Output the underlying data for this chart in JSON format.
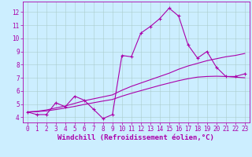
{
  "xlabel": "Windchill (Refroidissement éolien,°C)",
  "background_color": "#cceeff",
  "line_color": "#aa00aa",
  "grid_color": "#aacccc",
  "x_data": [
    0,
    1,
    2,
    3,
    4,
    5,
    6,
    7,
    8,
    9,
    10,
    11,
    12,
    13,
    14,
    15,
    16,
    17,
    18,
    19,
    20,
    21,
    22,
    23
  ],
  "series": [
    {
      "y": [
        4.4,
        4.2,
        4.2,
        5.1,
        4.8,
        5.6,
        5.3,
        4.6,
        3.9,
        4.2,
        8.7,
        8.6,
        10.4,
        10.9,
        11.5,
        12.3,
        11.7,
        9.5,
        8.5,
        9.0,
        7.8,
        7.1,
        7.1,
        7.3
      ],
      "marker": "+",
      "markersize": 3,
      "linewidth": 0.8
    },
    {
      "y": [
        4.4,
        4.45,
        4.55,
        4.7,
        4.85,
        5.05,
        5.25,
        5.4,
        5.55,
        5.7,
        6.05,
        6.35,
        6.6,
        6.85,
        7.1,
        7.35,
        7.65,
        7.9,
        8.1,
        8.3,
        8.45,
        8.6,
        8.7,
        8.85
      ],
      "marker": null,
      "markersize": 0,
      "linewidth": 0.8
    },
    {
      "y": [
        4.4,
        4.42,
        4.48,
        4.58,
        4.7,
        4.82,
        4.97,
        5.1,
        5.23,
        5.35,
        5.6,
        5.82,
        6.02,
        6.22,
        6.42,
        6.6,
        6.78,
        6.93,
        7.05,
        7.1,
        7.12,
        7.1,
        7.05,
        7.0
      ],
      "marker": null,
      "markersize": 0,
      "linewidth": 0.8
    }
  ],
  "xlim": [
    -0.5,
    23.5
  ],
  "ylim": [
    3.6,
    12.8
  ],
  "yticks": [
    4,
    5,
    6,
    7,
    8,
    9,
    10,
    11,
    12
  ],
  "xticks": [
    0,
    1,
    2,
    3,
    4,
    5,
    6,
    7,
    8,
    9,
    10,
    11,
    12,
    13,
    14,
    15,
    16,
    17,
    18,
    19,
    20,
    21,
    22,
    23
  ],
  "tick_fontsize": 5.5,
  "xlabel_fontsize": 6.5
}
